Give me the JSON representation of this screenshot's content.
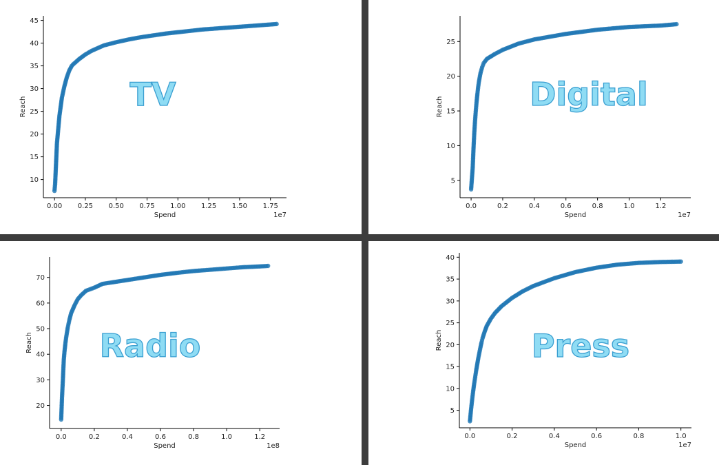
{
  "layout": {
    "divider_color": "#3d3d3d",
    "point_color": "#1f77b4",
    "label_fill": "#8fdcf4",
    "label_stroke": "#3a9fd1"
  },
  "chart_data": [
    {
      "type": "scatter",
      "label": "TV",
      "xlabel": "Spend",
      "ylabel": "Reach",
      "x_multiplier": "1e7",
      "xlim": [
        -0.09,
        1.88
      ],
      "ylim": [
        6,
        46
      ],
      "x_ticks": [
        "0.00",
        "0.25",
        "0.50",
        "0.75",
        "1.00",
        "1.25",
        "1.50",
        "1.75"
      ],
      "x_tick_values": [
        0,
        0.25,
        0.5,
        0.75,
        1.0,
        1.25,
        1.5,
        1.75
      ],
      "y_ticks": [
        "10",
        "15",
        "20",
        "25",
        "30",
        "35",
        "40",
        "45"
      ],
      "y_tick_values": [
        10,
        15,
        20,
        25,
        30,
        35,
        40,
        45
      ],
      "x": [
        0.0,
        0.005,
        0.01,
        0.015,
        0.02,
        0.03,
        0.04,
        0.05,
        0.06,
        0.08,
        0.1,
        0.12,
        0.14,
        0.15,
        0.2,
        0.25,
        0.3,
        0.4,
        0.5,
        0.6,
        0.7,
        0.8,
        0.9,
        1.0,
        1.1,
        1.2,
        1.3,
        1.4,
        1.5,
        1.6,
        1.7,
        1.8
      ],
      "y": [
        7.5,
        9.0,
        12.0,
        15.0,
        18.0,
        21.0,
        24.0,
        26.0,
        28.0,
        30.5,
        32.5,
        34.0,
        35.0,
        35.3,
        36.5,
        37.5,
        38.3,
        39.5,
        40.2,
        40.8,
        41.3,
        41.7,
        42.1,
        42.4,
        42.7,
        43.0,
        43.2,
        43.4,
        43.6,
        43.8,
        44.0,
        44.2
      ]
    },
    {
      "type": "scatter",
      "label": "Digital",
      "xlabel": "Spend",
      "ylabel": "Reach",
      "x_multiplier": "1e7",
      "xlim": [
        -0.07,
        1.39
      ],
      "ylim": [
        2.5,
        28.7
      ],
      "x_ticks": [
        "0.0",
        "0.2",
        "0.4",
        "0.6",
        "0.8",
        "1.0",
        "1.2"
      ],
      "x_tick_values": [
        0,
        0.2,
        0.4,
        0.6,
        0.8,
        1.0,
        1.2
      ],
      "y_ticks": [
        "5",
        "10",
        "15",
        "20",
        "25"
      ],
      "y_tick_values": [
        5,
        10,
        15,
        20,
        25
      ],
      "x": [
        0.0,
        0.01,
        0.015,
        0.02,
        0.025,
        0.03,
        0.035,
        0.04,
        0.045,
        0.05,
        0.06,
        0.07,
        0.08,
        0.1,
        0.15,
        0.2,
        0.3,
        0.4,
        0.5,
        0.6,
        0.7,
        0.8,
        0.9,
        1.0,
        1.1,
        1.2,
        1.3
      ],
      "y": [
        3.7,
        6.8,
        9.5,
        11.8,
        13.6,
        15.1,
        16.4,
        17.5,
        18.5,
        19.3,
        20.5,
        21.3,
        21.9,
        22.5,
        23.2,
        23.8,
        24.7,
        25.3,
        25.7,
        26.1,
        26.4,
        26.7,
        26.9,
        27.1,
        27.2,
        27.3,
        27.5
      ]
    },
    {
      "type": "scatter",
      "label": "Radio",
      "xlabel": "Spend",
      "ylabel": "Reach",
      "x_multiplier": "1e8",
      "xlim": [
        -0.07,
        1.32
      ],
      "ylim": [
        11,
        78
      ],
      "x_ticks": [
        "0.0",
        "0.2",
        "0.4",
        "0.6",
        "0.8",
        "1.0",
        "1.2"
      ],
      "x_tick_values": [
        0,
        0.2,
        0.4,
        0.6,
        0.8,
        1.0,
        1.2
      ],
      "y_ticks": [
        "20",
        "30",
        "40",
        "50",
        "60",
        "70"
      ],
      "y_tick_values": [
        20,
        30,
        40,
        50,
        60,
        70
      ],
      "x": [
        0.0,
        0.005,
        0.01,
        0.013,
        0.016,
        0.02,
        0.025,
        0.03,
        0.035,
        0.04,
        0.045,
        0.05,
        0.06,
        0.08,
        0.1,
        0.12,
        0.15,
        0.2,
        0.25,
        0.3,
        0.4,
        0.5,
        0.6,
        0.7,
        0.8,
        0.9,
        1.0,
        1.1,
        1.2,
        1.25
      ],
      "y": [
        14.5,
        23.0,
        29.5,
        34.0,
        38.0,
        41.0,
        44.0,
        46.5,
        48.5,
        50.5,
        52.0,
        53.5,
        56.0,
        59.0,
        61.5,
        63.0,
        64.8,
        66.0,
        67.5,
        68.0,
        69.0,
        70.0,
        71.0,
        71.8,
        72.5,
        73.0,
        73.5,
        74.0,
        74.3,
        74.5
      ]
    },
    {
      "type": "scatter",
      "label": "Press",
      "xlabel": "Spend",
      "ylabel": "Reach",
      "x_multiplier": "1e7",
      "xlim": [
        -0.05,
        1.05
      ],
      "ylim": [
        1,
        41
      ],
      "x_ticks": [
        "0.0",
        "0.2",
        "0.4",
        "0.6",
        "0.8",
        "1.0"
      ],
      "x_tick_values": [
        0,
        0.2,
        0.4,
        0.6,
        0.8,
        1.0
      ],
      "y_ticks": [
        "5",
        "10",
        "15",
        "20",
        "25",
        "30",
        "35",
        "40"
      ],
      "y_tick_values": [
        5,
        10,
        15,
        20,
        25,
        30,
        35,
        40
      ],
      "x": [
        0.0,
        0.005,
        0.01,
        0.015,
        0.02,
        0.025,
        0.03,
        0.035,
        0.04,
        0.045,
        0.05,
        0.055,
        0.06,
        0.07,
        0.08,
        0.1,
        0.12,
        0.15,
        0.2,
        0.25,
        0.3,
        0.4,
        0.5,
        0.6,
        0.7,
        0.8,
        0.9,
        1.0
      ],
      "y": [
        2.5,
        5.0,
        7.2,
        9.2,
        11.0,
        12.6,
        14.2,
        15.6,
        17.0,
        18.2,
        19.4,
        20.5,
        21.5,
        23.0,
        24.3,
        26.0,
        27.3,
        28.8,
        30.7,
        32.2,
        33.4,
        35.2,
        36.6,
        37.6,
        38.3,
        38.7,
        38.9,
        39.0
      ]
    }
  ]
}
